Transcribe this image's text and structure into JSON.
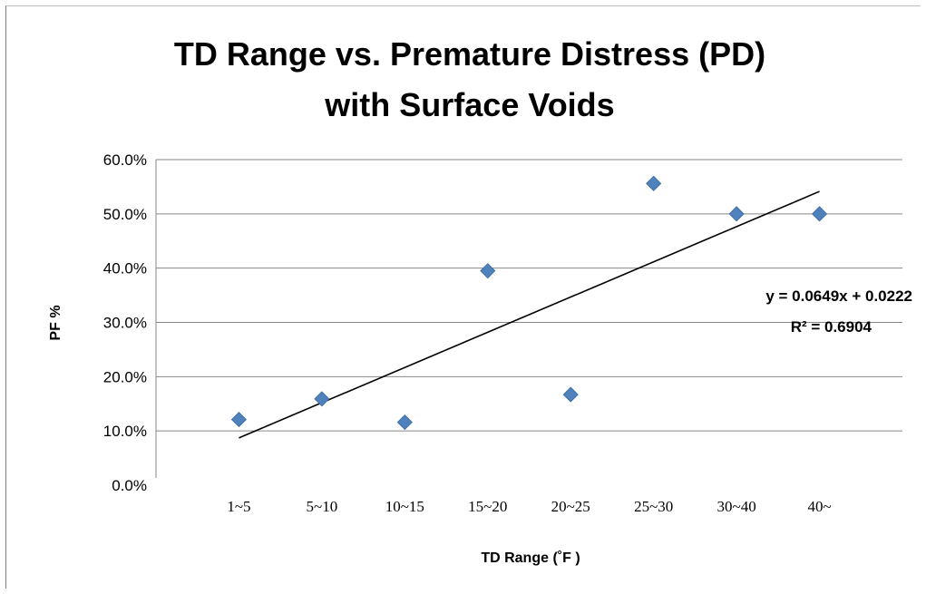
{
  "chart_data": {
    "type": "scatter",
    "title_lines": [
      "TD Range vs. Premature Distress (PD)",
      "with Surface Voids"
    ],
    "xlabel": "TD Range (˚F )",
    "ylabel": "PF %",
    "categories": [
      "1~5",
      "5~10",
      "10~15",
      "15~20",
      "20~25",
      "25~30",
      "30~40",
      "40~"
    ],
    "y_ticks": [
      "0.0%",
      "10.0%",
      "20.0%",
      "30.0%",
      "40.0%",
      "50.0%",
      "60.0%"
    ],
    "ylim": [
      0,
      0.6
    ],
    "grid": "horizontal",
    "marker": "diamond",
    "marker_color": "#4F81BD",
    "series": [
      {
        "x": [
          1,
          2,
          3,
          4,
          5,
          6,
          7,
          8
        ],
        "values": [
          0.121,
          0.159,
          0.116,
          0.395,
          0.167,
          0.556,
          0.5,
          0.5
        ]
      }
    ],
    "trendline": {
      "type": "linear",
      "slope": 0.0649,
      "intercept": 0.0222,
      "x_range": [
        1,
        8
      ],
      "equation_label": "y = 0.0649x + 0.0222",
      "r2_label": "R² = 0.6904"
    }
  }
}
